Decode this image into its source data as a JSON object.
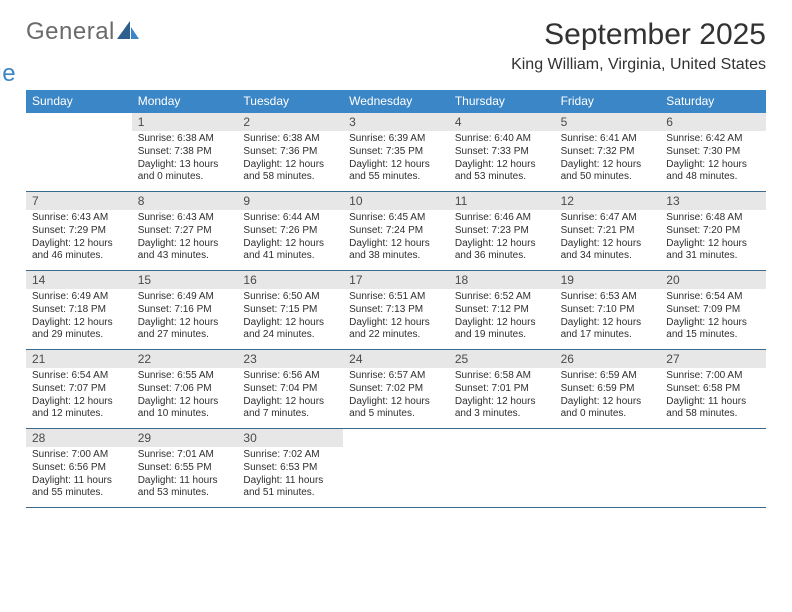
{
  "logo": {
    "word1": "General",
    "word2": "Blue"
  },
  "colors": {
    "header_bg": "#3b86c6",
    "header_text": "#ffffff",
    "daynum_bg": "#e7e7e7",
    "daynum_text": "#4a4a4a",
    "body_text": "#2f2f2f",
    "week_border": "#3b6a8f",
    "logo_gray": "#6a6a6a",
    "logo_blue": "#3b86c6",
    "title_color": "#323232"
  },
  "title": "September 2025",
  "location": "King William, Virginia, United States",
  "day_names": [
    "Sunday",
    "Monday",
    "Tuesday",
    "Wednesday",
    "Thursday",
    "Friday",
    "Saturday"
  ],
  "weeks": [
    [
      {
        "n": "",
        "sunrise": "",
        "sunset": "",
        "daylight": ""
      },
      {
        "n": "1",
        "sunrise": "Sunrise: 6:38 AM",
        "sunset": "Sunset: 7:38 PM",
        "daylight": "Daylight: 13 hours and 0 minutes."
      },
      {
        "n": "2",
        "sunrise": "Sunrise: 6:38 AM",
        "sunset": "Sunset: 7:36 PM",
        "daylight": "Daylight: 12 hours and 58 minutes."
      },
      {
        "n": "3",
        "sunrise": "Sunrise: 6:39 AM",
        "sunset": "Sunset: 7:35 PM",
        "daylight": "Daylight: 12 hours and 55 minutes."
      },
      {
        "n": "4",
        "sunrise": "Sunrise: 6:40 AM",
        "sunset": "Sunset: 7:33 PM",
        "daylight": "Daylight: 12 hours and 53 minutes."
      },
      {
        "n": "5",
        "sunrise": "Sunrise: 6:41 AM",
        "sunset": "Sunset: 7:32 PM",
        "daylight": "Daylight: 12 hours and 50 minutes."
      },
      {
        "n": "6",
        "sunrise": "Sunrise: 6:42 AM",
        "sunset": "Sunset: 7:30 PM",
        "daylight": "Daylight: 12 hours and 48 minutes."
      }
    ],
    [
      {
        "n": "7",
        "sunrise": "Sunrise: 6:43 AM",
        "sunset": "Sunset: 7:29 PM",
        "daylight": "Daylight: 12 hours and 46 minutes."
      },
      {
        "n": "8",
        "sunrise": "Sunrise: 6:43 AM",
        "sunset": "Sunset: 7:27 PM",
        "daylight": "Daylight: 12 hours and 43 minutes."
      },
      {
        "n": "9",
        "sunrise": "Sunrise: 6:44 AM",
        "sunset": "Sunset: 7:26 PM",
        "daylight": "Daylight: 12 hours and 41 minutes."
      },
      {
        "n": "10",
        "sunrise": "Sunrise: 6:45 AM",
        "sunset": "Sunset: 7:24 PM",
        "daylight": "Daylight: 12 hours and 38 minutes."
      },
      {
        "n": "11",
        "sunrise": "Sunrise: 6:46 AM",
        "sunset": "Sunset: 7:23 PM",
        "daylight": "Daylight: 12 hours and 36 minutes."
      },
      {
        "n": "12",
        "sunrise": "Sunrise: 6:47 AM",
        "sunset": "Sunset: 7:21 PM",
        "daylight": "Daylight: 12 hours and 34 minutes."
      },
      {
        "n": "13",
        "sunrise": "Sunrise: 6:48 AM",
        "sunset": "Sunset: 7:20 PM",
        "daylight": "Daylight: 12 hours and 31 minutes."
      }
    ],
    [
      {
        "n": "14",
        "sunrise": "Sunrise: 6:49 AM",
        "sunset": "Sunset: 7:18 PM",
        "daylight": "Daylight: 12 hours and 29 minutes."
      },
      {
        "n": "15",
        "sunrise": "Sunrise: 6:49 AM",
        "sunset": "Sunset: 7:16 PM",
        "daylight": "Daylight: 12 hours and 27 minutes."
      },
      {
        "n": "16",
        "sunrise": "Sunrise: 6:50 AM",
        "sunset": "Sunset: 7:15 PM",
        "daylight": "Daylight: 12 hours and 24 minutes."
      },
      {
        "n": "17",
        "sunrise": "Sunrise: 6:51 AM",
        "sunset": "Sunset: 7:13 PM",
        "daylight": "Daylight: 12 hours and 22 minutes."
      },
      {
        "n": "18",
        "sunrise": "Sunrise: 6:52 AM",
        "sunset": "Sunset: 7:12 PM",
        "daylight": "Daylight: 12 hours and 19 minutes."
      },
      {
        "n": "19",
        "sunrise": "Sunrise: 6:53 AM",
        "sunset": "Sunset: 7:10 PM",
        "daylight": "Daylight: 12 hours and 17 minutes."
      },
      {
        "n": "20",
        "sunrise": "Sunrise: 6:54 AM",
        "sunset": "Sunset: 7:09 PM",
        "daylight": "Daylight: 12 hours and 15 minutes."
      }
    ],
    [
      {
        "n": "21",
        "sunrise": "Sunrise: 6:54 AM",
        "sunset": "Sunset: 7:07 PM",
        "daylight": "Daylight: 12 hours and 12 minutes."
      },
      {
        "n": "22",
        "sunrise": "Sunrise: 6:55 AM",
        "sunset": "Sunset: 7:06 PM",
        "daylight": "Daylight: 12 hours and 10 minutes."
      },
      {
        "n": "23",
        "sunrise": "Sunrise: 6:56 AM",
        "sunset": "Sunset: 7:04 PM",
        "daylight": "Daylight: 12 hours and 7 minutes."
      },
      {
        "n": "24",
        "sunrise": "Sunrise: 6:57 AM",
        "sunset": "Sunset: 7:02 PM",
        "daylight": "Daylight: 12 hours and 5 minutes."
      },
      {
        "n": "25",
        "sunrise": "Sunrise: 6:58 AM",
        "sunset": "Sunset: 7:01 PM",
        "daylight": "Daylight: 12 hours and 3 minutes."
      },
      {
        "n": "26",
        "sunrise": "Sunrise: 6:59 AM",
        "sunset": "Sunset: 6:59 PM",
        "daylight": "Daylight: 12 hours and 0 minutes."
      },
      {
        "n": "27",
        "sunrise": "Sunrise: 7:00 AM",
        "sunset": "Sunset: 6:58 PM",
        "daylight": "Daylight: 11 hours and 58 minutes."
      }
    ],
    [
      {
        "n": "28",
        "sunrise": "Sunrise: 7:00 AM",
        "sunset": "Sunset: 6:56 PM",
        "daylight": "Daylight: 11 hours and 55 minutes."
      },
      {
        "n": "29",
        "sunrise": "Sunrise: 7:01 AM",
        "sunset": "Sunset: 6:55 PM",
        "daylight": "Daylight: 11 hours and 53 minutes."
      },
      {
        "n": "30",
        "sunrise": "Sunrise: 7:02 AM",
        "sunset": "Sunset: 6:53 PM",
        "daylight": "Daylight: 11 hours and 51 minutes."
      },
      {
        "n": "",
        "sunrise": "",
        "sunset": "",
        "daylight": ""
      },
      {
        "n": "",
        "sunrise": "",
        "sunset": "",
        "daylight": ""
      },
      {
        "n": "",
        "sunrise": "",
        "sunset": "",
        "daylight": ""
      },
      {
        "n": "",
        "sunrise": "",
        "sunset": "",
        "daylight": ""
      }
    ]
  ]
}
